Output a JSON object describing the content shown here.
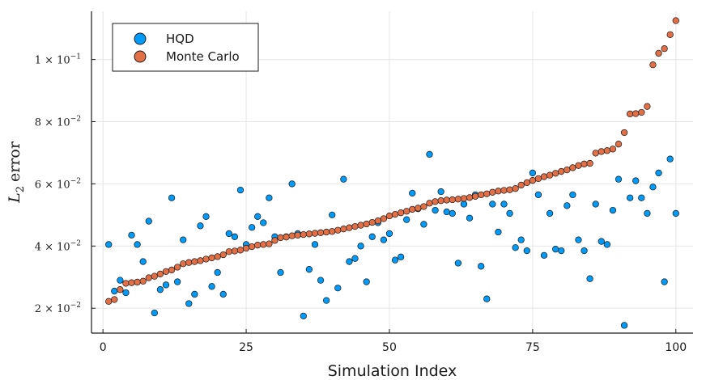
{
  "chart_data": {
    "type": "scatter",
    "title": "",
    "xlabel": "Simulation Index",
    "ylabel_main": "L",
    "ylabel_sub": "2",
    "ylabel_rest": "error",
    "xlim": [
      -2,
      103
    ],
    "ylim": [
      0.012,
      0.1155
    ],
    "x_ticks": [
      {
        "value": 0,
        "label": "0"
      },
      {
        "value": 25,
        "label": "25"
      },
      {
        "value": 50,
        "label": "50"
      },
      {
        "value": 75,
        "label": "75"
      },
      {
        "value": 100,
        "label": "100"
      }
    ],
    "y_ticks": [
      {
        "value": 0.02,
        "mantissa": "2 × 10",
        "exp": "−2"
      },
      {
        "value": 0.04,
        "mantissa": "4 × 10",
        "exp": "−2"
      },
      {
        "value": 0.06,
        "mantissa": "6 × 10",
        "exp": "−2"
      },
      {
        "value": 0.08,
        "mantissa": "8 × 10",
        "exp": "−2"
      },
      {
        "value": 0.1,
        "mantissa": "1 × 10",
        "exp": "−1"
      }
    ],
    "grid": true,
    "legend_position": "top-left",
    "series": [
      {
        "name": "HQD",
        "color": "#009af9",
        "x": [
          1,
          2,
          3,
          4,
          5,
          6,
          7,
          8,
          9,
          10,
          11,
          12,
          13,
          14,
          15,
          16,
          17,
          18,
          19,
          20,
          21,
          22,
          23,
          24,
          25,
          26,
          27,
          28,
          29,
          30,
          31,
          32,
          33,
          34,
          35,
          36,
          37,
          38,
          39,
          40,
          41,
          42,
          43,
          44,
          45,
          46,
          47,
          48,
          49,
          50,
          51,
          52,
          53,
          54,
          55,
          56,
          57,
          58,
          59,
          60,
          61,
          62,
          63,
          64,
          65,
          66,
          67,
          68,
          69,
          70,
          71,
          72,
          73,
          74,
          75,
          76,
          77,
          78,
          79,
          80,
          81,
          82,
          83,
          84,
          85,
          86,
          87,
          88,
          89,
          90,
          91,
          92,
          93,
          94,
          95,
          96,
          97,
          98,
          99,
          100
        ],
        "values": [
          0.0405,
          0.0255,
          0.029,
          0.025,
          0.0435,
          0.0405,
          0.035,
          0.048,
          0.0185,
          0.026,
          0.0275,
          0.0555,
          0.0285,
          0.042,
          0.0215,
          0.0245,
          0.0465,
          0.0495,
          0.027,
          0.0315,
          0.0245,
          0.044,
          0.043,
          0.058,
          0.0405,
          0.046,
          0.0495,
          0.0475,
          0.0555,
          0.043,
          0.0315,
          0.043,
          0.06,
          0.044,
          0.0175,
          0.0325,
          0.0405,
          0.029,
          0.0225,
          0.05,
          0.0265,
          0.0615,
          0.035,
          0.036,
          0.04,
          0.0285,
          0.043,
          0.0475,
          0.042,
          0.044,
          0.0355,
          0.0365,
          0.0485,
          0.057,
          0.052,
          0.047,
          0.0695,
          0.0515,
          0.0575,
          0.051,
          0.0505,
          0.0345,
          0.0535,
          0.049,
          0.0565,
          0.0335,
          0.023,
          0.0535,
          0.0445,
          0.0535,
          0.0505,
          0.0395,
          0.042,
          0.0385,
          0.0635,
          0.0565,
          0.037,
          0.0505,
          0.039,
          0.0385,
          0.053,
          0.0565,
          0.042,
          0.0385,
          0.0295,
          0.0535,
          0.0415,
          0.0405,
          0.0515,
          0.0615,
          0.0145,
          0.0555,
          0.061,
          0.0555,
          0.0505,
          0.059,
          0.0635,
          0.0285,
          0.068,
          0.0505
        ]
      },
      {
        "name": "Monte Carlo",
        "color": "#e26f46",
        "x": [
          1,
          2,
          3,
          4,
          5,
          6,
          7,
          8,
          9,
          10,
          11,
          12,
          13,
          14,
          15,
          16,
          17,
          18,
          19,
          20,
          21,
          22,
          23,
          24,
          25,
          26,
          27,
          28,
          29,
          30,
          31,
          32,
          33,
          34,
          35,
          36,
          37,
          38,
          39,
          40,
          41,
          42,
          43,
          44,
          45,
          46,
          47,
          48,
          49,
          50,
          51,
          52,
          53,
          54,
          55,
          56,
          57,
          58,
          59,
          60,
          61,
          62,
          63,
          64,
          65,
          66,
          67,
          68,
          69,
          70,
          71,
          72,
          73,
          74,
          75,
          76,
          77,
          78,
          79,
          80,
          81,
          82,
          83,
          84,
          85,
          86,
          87,
          88,
          89,
          90,
          91,
          92,
          93,
          94,
          95,
          96,
          97,
          98,
          99,
          100
        ],
        "values": [
          0.0222,
          0.0228,
          0.026,
          0.028,
          0.0282,
          0.0284,
          0.0287,
          0.0298,
          0.0303,
          0.031,
          0.0318,
          0.0323,
          0.0332,
          0.0343,
          0.0347,
          0.035,
          0.0353,
          0.0358,
          0.0362,
          0.0366,
          0.0372,
          0.0382,
          0.0384,
          0.0387,
          0.0393,
          0.0398,
          0.0403,
          0.0405,
          0.0407,
          0.0418,
          0.0427,
          0.0429,
          0.0433,
          0.0435,
          0.0437,
          0.0439,
          0.0441,
          0.0443,
          0.0445,
          0.0447,
          0.0451,
          0.0455,
          0.0459,
          0.0463,
          0.0467,
          0.0471,
          0.0476,
          0.0481,
          0.0488,
          0.0497,
          0.0502,
          0.0507,
          0.0512,
          0.0518,
          0.0522,
          0.0527,
          0.0538,
          0.0543,
          0.0546,
          0.0548,
          0.0549,
          0.0551,
          0.0553,
          0.0556,
          0.056,
          0.0565,
          0.0568,
          0.0573,
          0.0577,
          0.0579,
          0.0581,
          0.0585,
          0.0596,
          0.0604,
          0.0611,
          0.0617,
          0.0623,
          0.0628,
          0.0634,
          0.064,
          0.0645,
          0.0652,
          0.0659,
          0.0664,
          0.0666,
          0.0699,
          0.0704,
          0.0707,
          0.0712,
          0.0728,
          0.0765,
          0.0825,
          0.0826,
          0.083,
          0.0849,
          0.0983,
          0.102,
          0.1035,
          0.108,
          0.1125
        ]
      }
    ]
  }
}
